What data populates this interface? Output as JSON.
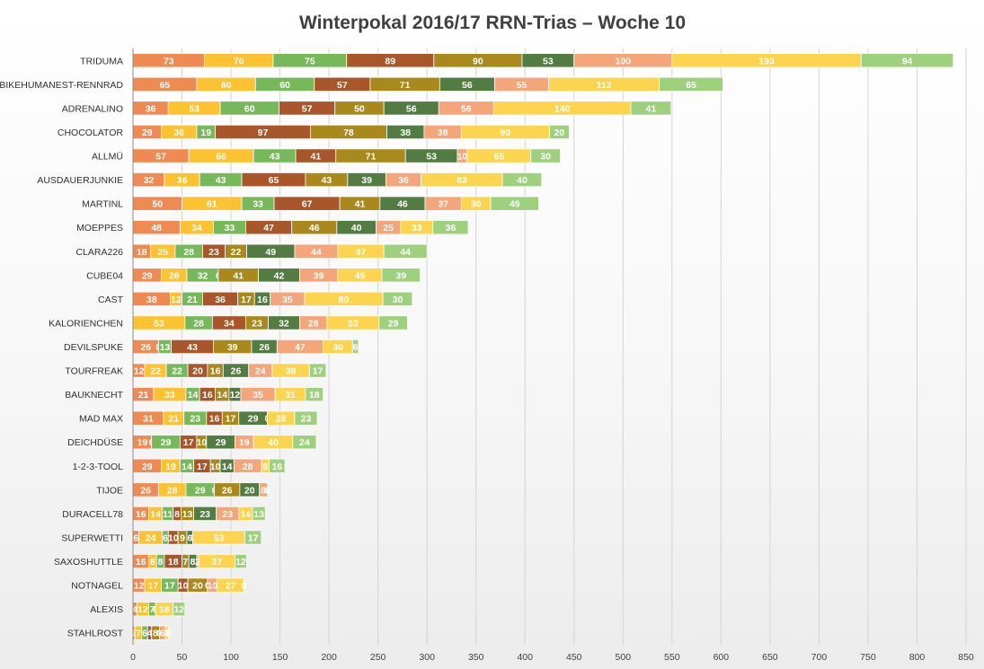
{
  "chart_data": {
    "type": "bar",
    "orientation": "horizontal",
    "stacked": true,
    "title": "Winterpokal 2016/17 RRN-Trias – Woche 10",
    "xlabel": "",
    "ylabel": "",
    "xlim": [
      0,
      850
    ],
    "x_ticks": [
      0,
      50,
      100,
      150,
      200,
      250,
      300,
      350,
      400,
      450,
      500,
      550,
      600,
      650,
      700,
      750,
      800,
      850
    ],
    "grid": true,
    "legend": "none",
    "categories": [
      "TRIDUMA",
      "BIKEHUMANEST-RENNRAD",
      "ADRENALINO",
      "CHOCOLATOR",
      "ALLMÜ",
      "AUSDAUERJUNKIE",
      "MARTINL",
      "MOEPPES",
      "CLARA226",
      "CUBE04",
      "CAST",
      "KALORIENCHEN",
      "DEVILSPUKE",
      "TOURFREAK",
      "BAUKNECHT",
      "MAD MAX",
      "DEICHDÜSE",
      "1-2-3-TOOL",
      "TIJOE",
      "DURACELL78",
      "SUPERWETTI",
      "SAXOSHUTTLE",
      "NOTNAGEL",
      "ALEXIS",
      "STAHLROST"
    ],
    "series_colors": [
      "#ef8b52",
      "#fcc232",
      "#77b95a",
      "#a9562a",
      "#a9891c",
      "#527c42",
      "#f4a57a",
      "#fdd44f",
      "#9ed07e"
    ],
    "series": [
      {
        "values": [
          73,
          65,
          36,
          29,
          57,
          32,
          50,
          48,
          18,
          29,
          38,
          0,
          26,
          12,
          21,
          31,
          19,
          29,
          26,
          16,
          6,
          16,
          12,
          4,
          2
        ]
      },
      {
        "values": [
          70,
          60,
          53,
          36,
          66,
          36,
          61,
          34,
          25,
          26,
          12,
          53,
          0,
          22,
          33,
          21,
          0,
          19,
          28,
          14,
          24,
          8,
          17,
          12,
          7
        ]
      },
      {
        "values": [
          75,
          60,
          60,
          19,
          43,
          43,
          33,
          33,
          28,
          32,
          21,
          28,
          13,
          22,
          14,
          23,
          29,
          14,
          29,
          11,
          6,
          8,
          17,
          7,
          6
        ]
      },
      {
        "values": [
          89,
          57,
          57,
          97,
          41,
          65,
          67,
          47,
          23,
          0,
          36,
          34,
          43,
          20,
          16,
          16,
          17,
          17,
          0,
          8,
          10,
          18,
          10,
          0,
          4
        ]
      },
      {
        "values": [
          90,
          71,
          50,
          78,
          71,
          43,
          41,
          46,
          22,
          41,
          17,
          23,
          39,
          16,
          14,
          17,
          10,
          10,
          26,
          13,
          9,
          7,
          20,
          0,
          8
        ]
      },
      {
        "values": [
          53,
          56,
          56,
          38,
          53,
          39,
          46,
          40,
          49,
          42,
          16,
          32,
          26,
          26,
          12,
          29,
          29,
          14,
          20,
          23,
          6,
          8,
          0,
          0,
          0
        ]
      },
      {
        "values": [
          100,
          55,
          56,
          38,
          10,
          36,
          37,
          25,
          44,
          39,
          35,
          28,
          47,
          24,
          35,
          0,
          19,
          28,
          8,
          23,
          0,
          2,
          10,
          0,
          6
        ]
      },
      {
        "values": [
          193,
          113,
          140,
          90,
          65,
          83,
          30,
          33,
          47,
          45,
          80,
          53,
          30,
          38,
          31,
          28,
          40,
          8,
          0,
          14,
          53,
          37,
          27,
          18,
          3
        ]
      },
      {
        "values": [
          94,
          65,
          41,
          20,
          30,
          40,
          49,
          36,
          44,
          39,
          30,
          29,
          6,
          17,
          18,
          23,
          24,
          16,
          0,
          13,
          17,
          12,
          0,
          12,
          0
        ]
      }
    ]
  }
}
